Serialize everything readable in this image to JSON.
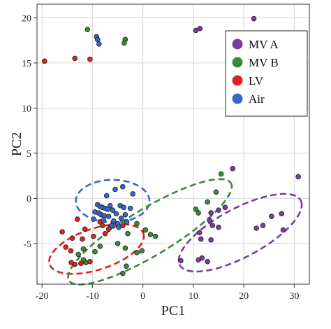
{
  "chart_data": {
    "type": "scatter",
    "title": "",
    "xlabel": "PC1",
    "ylabel": "PC2",
    "xlim": [
      -21,
      33
    ],
    "ylim": [
      -9.5,
      21.5
    ],
    "xticks": [
      -20,
      -10,
      0,
      10,
      20,
      30
    ],
    "yticks": [
      -5,
      0,
      5,
      10,
      15,
      20
    ],
    "xtick_labels": [
      "-20",
      "-10",
      "0",
      "10",
      "20",
      "30"
    ],
    "ytick_labels": [
      "-5",
      "0",
      "5",
      "10",
      "15",
      "20"
    ],
    "grid": true,
    "legend_position": "top-right",
    "series": [
      {
        "name": "MV A",
        "color": "#7a3ba5",
        "points": [
          [
            10.5,
            18.6
          ],
          [
            11.3,
            18.8
          ],
          [
            22.0,
            19.9
          ],
          [
            30.8,
            2.4
          ],
          [
            17.8,
            3.3
          ],
          [
            25.5,
            -2.0
          ],
          [
            27.5,
            -1.7
          ],
          [
            27.8,
            -3.5
          ],
          [
            23.8,
            -3.0
          ],
          [
            22.5,
            -3.3
          ],
          [
            16.3,
            -1.0
          ],
          [
            15.0,
            -1.3
          ],
          [
            13.5,
            -1.6
          ],
          [
            13.2,
            -2.4
          ],
          [
            13.8,
            -3.0
          ],
          [
            15.0,
            -3.2
          ],
          [
            11.2,
            -3.8
          ],
          [
            11.5,
            -4.5
          ],
          [
            13.5,
            -4.6
          ],
          [
            11.7,
            -6.6
          ],
          [
            12.8,
            -7.0
          ],
          [
            11.0,
            -6.8
          ],
          [
            7.5,
            -6.9
          ]
        ]
      },
      {
        "name": "MV B",
        "color": "#3a8a3a",
        "points": [
          [
            -11.0,
            18.7
          ],
          [
            -3.5,
            17.6
          ],
          [
            -3.7,
            17.2
          ],
          [
            15.5,
            2.7
          ],
          [
            14.5,
            0.7
          ],
          [
            12.8,
            -0.4
          ],
          [
            10.5,
            -1.2
          ],
          [
            11.0,
            -1.6
          ],
          [
            -1.2,
            -2.8
          ],
          [
            0.5,
            -3.5
          ],
          [
            -3.0,
            -3.9
          ],
          [
            1.5,
            -4.0
          ],
          [
            2.5,
            -4.2
          ],
          [
            -5.0,
            -5.0
          ],
          [
            -3.5,
            -5.5
          ],
          [
            -0.2,
            -5.8
          ],
          [
            -1.2,
            -6.0
          ],
          [
            -11.8,
            -5.6
          ],
          [
            -12.8,
            -6.2
          ],
          [
            -11.3,
            -7.1
          ],
          [
            -8.5,
            -5.3
          ],
          [
            -9.5,
            -5.9
          ],
          [
            -11.8,
            -6.8
          ],
          [
            -4.0,
            -8.3
          ],
          [
            -3.3,
            -7.5
          ]
        ]
      },
      {
        "name": "LV",
        "color": "#dd2222",
        "points": [
          [
            -19.5,
            15.2
          ],
          [
            -13.5,
            15.5
          ],
          [
            -10.5,
            15.4
          ],
          [
            -13.0,
            -2.3
          ],
          [
            -8.5,
            -2.6
          ],
          [
            -11.5,
            -3.4
          ],
          [
            -8.0,
            -3.0
          ],
          [
            -6.5,
            -3.2
          ],
          [
            -6.8,
            -3.4
          ],
          [
            -4.0,
            -3.0
          ],
          [
            -7.5,
            -3.9
          ],
          [
            -9.8,
            -4.2
          ],
          [
            -12.0,
            -4.5
          ],
          [
            -14.0,
            -4.4
          ],
          [
            -15.3,
            -5.4
          ],
          [
            -14.3,
            -5.8
          ],
          [
            -13.5,
            -7.3
          ],
          [
            -12.3,
            -7.2
          ],
          [
            -10.5,
            -7.0
          ],
          [
            -14.2,
            -7.1
          ],
          [
            -16.0,
            -3.7
          ]
        ]
      },
      {
        "name": "Air",
        "color": "#3a66cc",
        "points": [
          [
            -9.2,
            17.9
          ],
          [
            -9.0,
            17.6
          ],
          [
            -8.7,
            17.1
          ],
          [
            -4.0,
            1.3
          ],
          [
            -5.5,
            1.0
          ],
          [
            -7.2,
            0.3
          ],
          [
            -2.0,
            0.5
          ],
          [
            -9.0,
            -0.7
          ],
          [
            -8.5,
            -0.9
          ],
          [
            -8.0,
            -1.0
          ],
          [
            -7.5,
            -1.1
          ],
          [
            -7.0,
            -1.2
          ],
          [
            -6.5,
            -0.8
          ],
          [
            -6.0,
            -1.3
          ],
          [
            -4.5,
            -0.8
          ],
          [
            -3.8,
            -1.0
          ],
          [
            -2.5,
            -1.1
          ],
          [
            -9.5,
            -1.5
          ],
          [
            -8.8,
            -1.6
          ],
          [
            -8.3,
            -1.8
          ],
          [
            -7.7,
            -1.9
          ],
          [
            -6.8,
            -2.0
          ],
          [
            -5.3,
            -1.7
          ],
          [
            -3.5,
            -1.8
          ],
          [
            -7.8,
            -2.4
          ],
          [
            -5.8,
            -2.5
          ],
          [
            -5.0,
            -2.8
          ],
          [
            -4.3,
            -2.2
          ],
          [
            -3.2,
            -2.6
          ],
          [
            -9.8,
            -2.3
          ],
          [
            -6.2,
            -3.0
          ],
          [
            -4.8,
            -3.2
          ]
        ]
      }
    ],
    "ellipses": [
      {
        "series": "Air",
        "cx": -6.0,
        "cy": -0.3,
        "rx": 7.3,
        "ry": 2.35,
        "angle_deg": 0
      },
      {
        "series": "LV",
        "cx": -9.2,
        "cy": -5.6,
        "rx": 9.5,
        "ry": 2.35,
        "angle_deg": 9
      },
      {
        "series": "MV B",
        "cx": 1.4,
        "cy": -3.7,
        "rx": 17.0,
        "ry": 2.85,
        "angle_deg": 17.7
      },
      {
        "series": "MV A",
        "cx": 19.3,
        "cy": -3.8,
        "rx": 12.6,
        "ry": 2.9,
        "angle_deg": 15
      }
    ]
  }
}
